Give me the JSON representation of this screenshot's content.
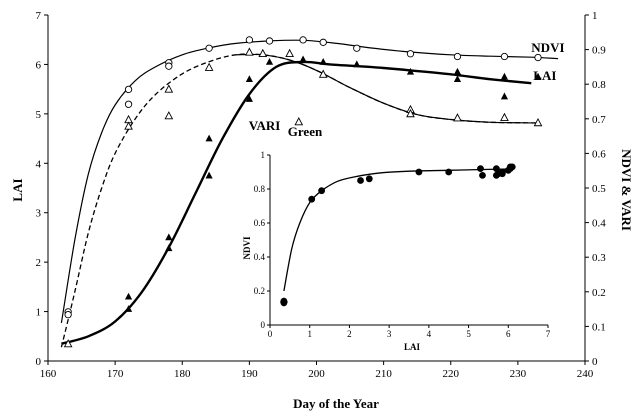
{
  "chart_data": [
    {
      "type": "scatter",
      "xlabel": "Day of the Year",
      "ylabel": "LAI",
      "ylabel_right": "NDVI & VARI",
      "xlim": [
        160,
        240
      ],
      "ylim": [
        0,
        7
      ],
      "ylim_right": [
        0,
        1
      ],
      "x_ticks": [
        "160",
        "170",
        "180",
        "190",
        "200",
        "210",
        "220",
        "230",
        "240"
      ],
      "y_ticks": [
        "0",
        "1",
        "2",
        "3",
        "4",
        "5",
        "6",
        "7"
      ],
      "y_ticks_right": [
        "0",
        "0.1",
        "0.2",
        "0.3",
        "0.4",
        "0.5",
        "0.6",
        "0.7",
        "0.8",
        "0.9",
        "1"
      ],
      "grid": false,
      "annotations": [
        {
          "text": "NDVI",
          "x": 232,
          "y": 0.876
        },
        {
          "text": "LAI",
          "x": 232,
          "y": 5.5
        },
        {
          "text": "VARI",
          "sub": "Green",
          "x": 199,
          "y": 0.685
        }
      ],
      "series": [
        {
          "name": "NDVI",
          "axis": "right",
          "marker": "open-circle",
          "points": [
            [
              163,
              0.142
            ],
            [
              163,
              0.134
            ],
            [
              172,
              0.785
            ],
            [
              172,
              0.742
            ],
            [
              178,
              0.862
            ],
            [
              178,
              0.852
            ],
            [
              184,
              0.904
            ],
            [
              190,
              0.928
            ],
            [
              193,
              0.925
            ],
            [
              198,
              0.928
            ],
            [
              201,
              0.921
            ],
            [
              206,
              0.904
            ],
            [
              214,
              0.888
            ],
            [
              221,
              0.88
            ],
            [
              228,
              0.88
            ],
            [
              233,
              0.877
            ]
          ],
          "fit": [
            [
              162,
              0.11
            ],
            [
              164,
              0.35
            ],
            [
              166,
              0.54
            ],
            [
              168,
              0.66
            ],
            [
              170,
              0.74
            ],
            [
              173,
              0.81
            ],
            [
              176,
              0.85
            ],
            [
              180,
              0.885
            ],
            [
              184,
              0.905
            ],
            [
              188,
              0.918
            ],
            [
              193,
              0.925
            ],
            [
              198,
              0.927
            ],
            [
              203,
              0.918
            ],
            [
              208,
              0.905
            ],
            [
              214,
              0.893
            ],
            [
              220,
              0.885
            ],
            [
              226,
              0.881
            ],
            [
              232,
              0.878
            ],
            [
              236,
              0.874
            ]
          ]
        },
        {
          "name": "VARI Green",
          "axis": "right",
          "marker": "open-triangle",
          "points": [
            [
              163,
              0.049
            ],
            [
              172,
              0.697
            ],
            [
              172,
              0.678
            ],
            [
              178,
              0.785
            ],
            [
              178,
              0.708
            ],
            [
              184,
              0.848
            ],
            [
              190,
              0.892
            ],
            [
              192,
              0.888
            ],
            [
              196,
              0.888
            ],
            [
              201,
              0.828
            ],
            [
              214,
              0.726
            ],
            [
              214,
              0.714
            ],
            [
              221,
              0.702
            ],
            [
              228,
              0.703
            ],
            [
              233,
              0.688
            ]
          ],
          "fit": [
            [
              162,
              0.04
            ],
            [
              164,
              0.2
            ],
            [
              166,
              0.37
            ],
            [
              168,
              0.5
            ],
            [
              170,
              0.6
            ],
            [
              173,
              0.7
            ],
            [
              176,
              0.77
            ],
            [
              180,
              0.83
            ],
            [
              184,
              0.865
            ],
            [
              188,
              0.885
            ],
            [
              192,
              0.885
            ],
            [
              196,
              0.87
            ],
            [
              200,
              0.84
            ],
            [
              205,
              0.79
            ],
            [
              210,
              0.745
            ],
            [
              215,
              0.712
            ],
            [
              220,
              0.698
            ],
            [
              226,
              0.69
            ],
            [
              233,
              0.688
            ]
          ]
        },
        {
          "name": "LAI",
          "axis": "left",
          "marker": "filled-triangle",
          "points": [
            [
              172,
              1.3
            ],
            [
              172,
              1.05
            ],
            [
              178,
              2.5
            ],
            [
              178,
              2.28
            ],
            [
              184,
              4.5
            ],
            [
              184,
              3.75
            ],
            [
              190,
              5.7
            ],
            [
              190,
              5.3
            ],
            [
              193,
              6.05
            ],
            [
              198,
              6.1
            ],
            [
              201,
              6.05
            ],
            [
              206,
              6.0
            ],
            [
              214,
              5.85
            ],
            [
              221,
              5.85
            ],
            [
              221,
              5.7
            ],
            [
              228,
              5.75
            ],
            [
              228,
              5.35
            ],
            [
              233,
              5.75
            ]
          ],
          "fit": [
            [
              162,
              0.35
            ],
            [
              166,
              0.5
            ],
            [
              170,
              0.8
            ],
            [
              174,
              1.4
            ],
            [
              178,
              2.3
            ],
            [
              182,
              3.4
            ],
            [
              186,
              4.5
            ],
            [
              190,
              5.4
            ],
            [
              194,
              5.95
            ],
            [
              198,
              6.05
            ],
            [
              202,
              6.0
            ],
            [
              208,
              5.95
            ],
            [
              214,
              5.88
            ],
            [
              220,
              5.8
            ],
            [
              226,
              5.7
            ],
            [
              232,
              5.62
            ]
          ]
        }
      ]
    },
    {
      "type": "scatter",
      "xlabel": "LAI",
      "ylabel": "NDVI",
      "xlim": [
        0,
        7
      ],
      "ylim": [
        0,
        1
      ],
      "x_ticks": [
        "0",
        "1",
        "2",
        "3",
        "4",
        "5",
        "6",
        "7"
      ],
      "y_ticks": [
        "0",
        "0.2",
        "0.4",
        "0.6",
        "0.8",
        "1"
      ],
      "grid": false,
      "series": [
        {
          "marker": "filled-circle",
          "points": [
            [
              0.35,
              0.14
            ],
            [
              0.35,
              0.13
            ],
            [
              1.05,
              0.74
            ],
            [
              1.3,
              0.79
            ],
            [
              2.28,
              0.85
            ],
            [
              2.5,
              0.86
            ],
            [
              3.75,
              0.9
            ],
            [
              4.5,
              0.9
            ],
            [
              5.3,
              0.92
            ],
            [
              5.35,
              0.88
            ],
            [
              5.7,
              0.92
            ],
            [
              5.7,
              0.88
            ],
            [
              5.75,
              0.89
            ],
            [
              5.85,
              0.89
            ],
            [
              5.85,
              0.9
            ],
            [
              6.0,
              0.91
            ],
            [
              6.05,
              0.93
            ],
            [
              6.05,
              0.92
            ],
            [
              6.1,
              0.93
            ]
          ],
          "fit": [
            [
              0.35,
              0.2
            ],
            [
              0.55,
              0.45
            ],
            [
              0.75,
              0.6
            ],
            [
              1.0,
              0.72
            ],
            [
              1.3,
              0.79
            ],
            [
              1.7,
              0.845
            ],
            [
              2.2,
              0.875
            ],
            [
              2.8,
              0.895
            ],
            [
              3.5,
              0.905
            ],
            [
              4.5,
              0.91
            ],
            [
              5.5,
              0.915
            ],
            [
              6.15,
              0.918
            ]
          ]
        }
      ],
      "extra_marker": {
        "marker": "filled-diamond",
        "x": 0.35,
        "y": 0.135
      }
    }
  ]
}
